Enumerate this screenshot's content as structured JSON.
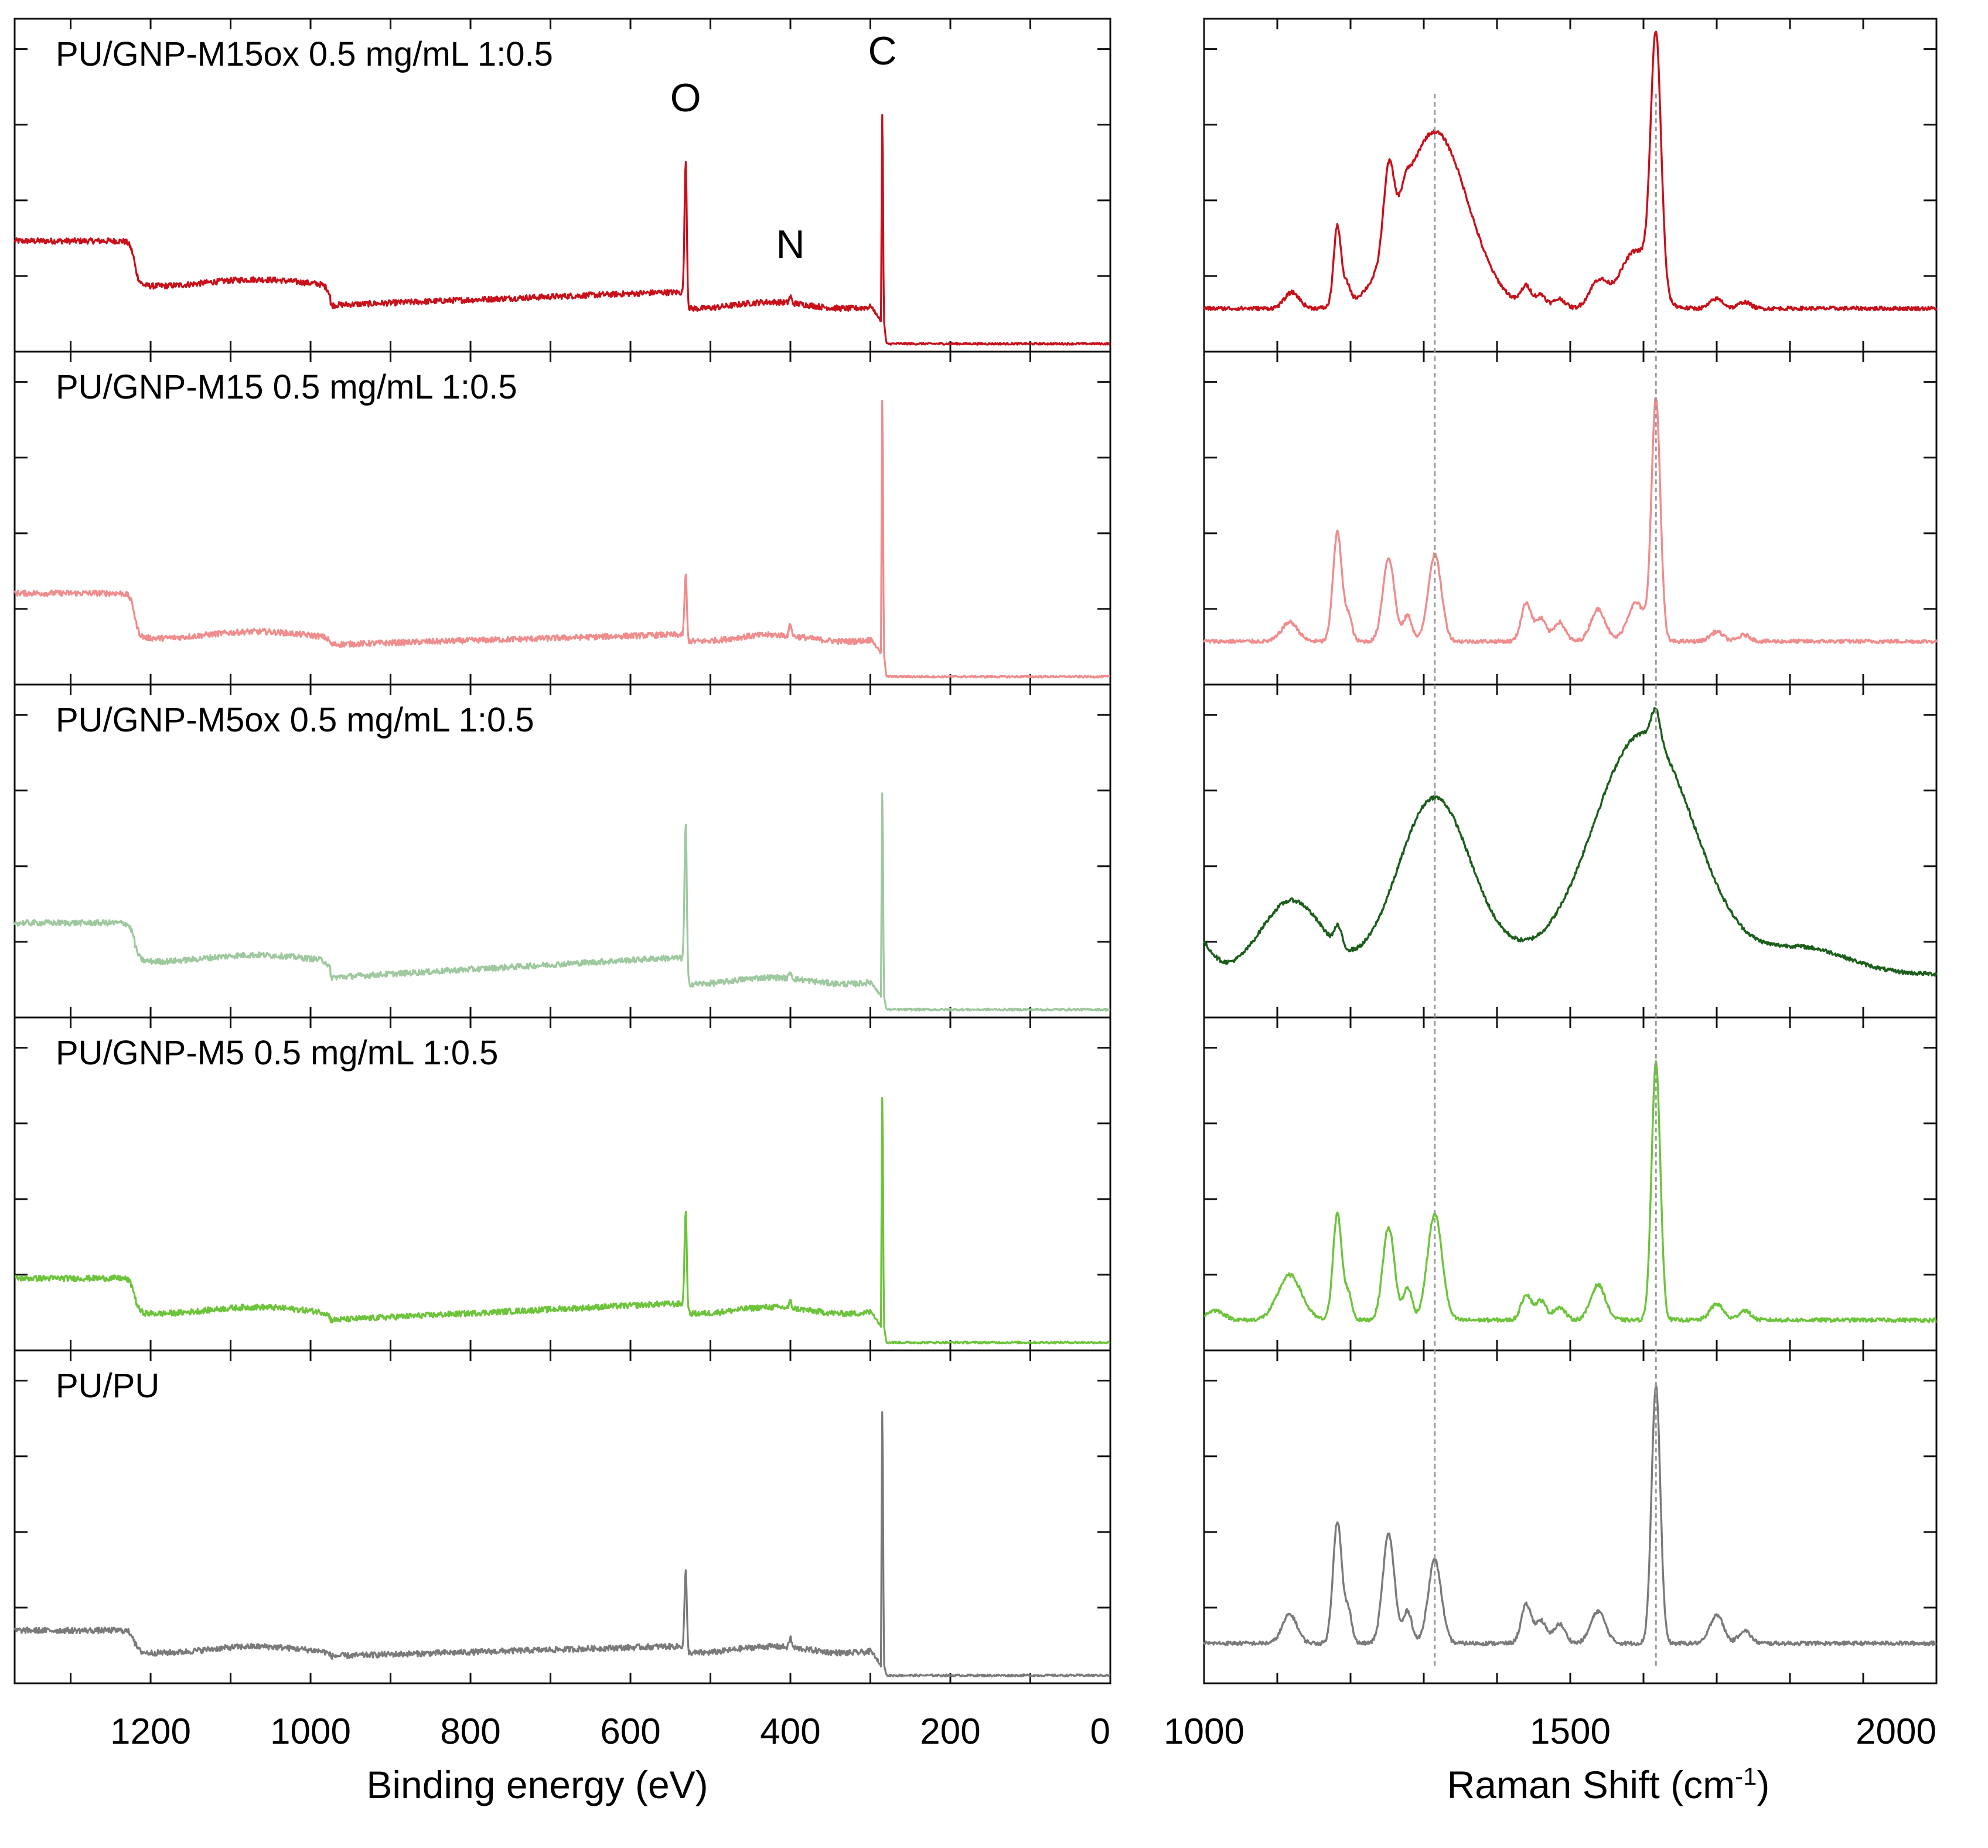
{
  "chart_data": [
    {
      "type": "line",
      "name": "XPS survey spectra",
      "xlabel": "Binding energy (eV)",
      "ylabel": "",
      "xlim": [
        1370,
        0
      ],
      "x_reversed": true,
      "xticks": [
        1200,
        1000,
        800,
        600,
        400,
        200,
        0
      ],
      "xtick_labels": [
        "1200",
        "1000",
        "800",
        "600",
        "400",
        "200",
        "0"
      ],
      "peak_labels": [
        {
          "text": "O",
          "x": 531
        },
        {
          "text": "N",
          "x": 400
        },
        {
          "text": "C",
          "x": 285
        }
      ],
      "series": [
        {
          "name": "PU/GNP-M15ox 0.5 mg/mL 1:0.5",
          "color": "#c8101a",
          "features": {
            "plateau_high_1370_1220": 0.33,
            "step_1220": 0.2,
            "plateau_mid_1220_975": 0.2,
            "step_975": 0.13,
            "baseline_975_560": 0.13,
            "rise_to_560": 0.17,
            "baseline_530_300": 0.13,
            "O_1s_peak_531": 0.58,
            "N_1s_peak_400": 0.15,
            "C_1s_peak_285": 0.73,
            "below_280": 0.01
          }
        },
        {
          "name": "PU/GNP-M15 0.5 mg/mL 1:0.5",
          "color": "#f08c8c",
          "features": {
            "plateau_high_1370_1220": 0.27,
            "step_1220": 0.15,
            "plateau_mid_1220_975": 0.14,
            "step_975": 0.1,
            "baseline_975_560": 0.11,
            "rise_to_560": 0.14,
            "baseline_530_300": 0.13,
            "O_1s_peak_531": 0.33,
            "N_1s_peak_400": 0.17,
            "C_1s_peak_285": 0.88,
            "below_280": 0.01
          }
        },
        {
          "name": "PU/GNP-M5ox 0.5 mg/mL 1:0.5",
          "color": "#9ec89e",
          "features": {
            "plateau_high_1370_1220": 0.28,
            "step_1220": 0.17,
            "plateau_mid_1220_975": 0.17,
            "step_975": 0.11,
            "baseline_975_560": 0.11,
            "rise_to_560": 0.17,
            "baseline_530_300": 0.1,
            "O_1s_peak_531": 0.59,
            "N_1s_peak_400": 0.12,
            "C_1s_peak_285": 0.69,
            "below_280": 0.01
          }
        },
        {
          "name": "PU/GNP-M5 0.5 mg/mL 1:0.5",
          "color": "#6cc43a",
          "features": {
            "plateau_high_1370_1220": 0.21,
            "step_1220": 0.12,
            "plateau_mid_1220_975": 0.11,
            "step_975": 0.08,
            "baseline_975_560": 0.08,
            "rise_to_560": 0.13,
            "baseline_530_300": 0.11,
            "O_1s_peak_531": 0.42,
            "N_1s_peak_400": 0.13,
            "C_1s_peak_285": 0.78,
            "below_280": 0.01
          }
        },
        {
          "name": "PU/PU",
          "color": "#7a7a7a",
          "features": {
            "plateau_high_1370_1220": 0.15,
            "step_1220": 0.09,
            "plateau_mid_1220_975": 0.09,
            "step_975": 0.07,
            "baseline_975_560": 0.07,
            "rise_to_560": 0.1,
            "baseline_530_300": 0.09,
            "O_1s_peak_531": 0.34,
            "N_1s_peak_400": 0.12,
            "C_1s_peak_285": 0.84,
            "below_280": 0.01
          }
        }
      ]
    },
    {
      "type": "line",
      "name": "Raman spectra",
      "xlabel": "Raman Shift (cm",
      "xlabel_sup": "-1",
      "xlabel_close": ")",
      "ylabel": "",
      "xlim": [
        1000,
        2000
      ],
      "xticks": [
        1000,
        1500,
        2000
      ],
      "xtick_labels": [
        "1000",
        "1500",
        "2000"
      ],
      "reference_lines": [
        1315,
        1617
      ],
      "series": [
        {
          "name": "PU/GNP-M15ox 0.5 mg/mL 1:0.5",
          "color": "#c8101a",
          "baseline": 0.12,
          "peaks": [
            {
              "x": 1120,
              "h": 0.05,
              "w": 10
            },
            {
              "x": 1182,
              "h": 0.25,
              "w": 5
            },
            {
              "x": 1195,
              "h": 0.06,
              "w": 5
            },
            {
              "x": 1252,
              "h": 0.25,
              "w": 7
            },
            {
              "x": 1275,
              "h": 0.05,
              "w": 6
            },
            {
              "x": 1315,
              "h": 0.55,
              "w": 45
            },
            {
              "x": 1440,
              "h": 0.06,
              "w": 7
            },
            {
              "x": 1460,
              "h": 0.04,
              "w": 7
            },
            {
              "x": 1485,
              "h": 0.03,
              "w": 8
            },
            {
              "x": 1538,
              "h": 0.08,
              "w": 12
            },
            {
              "x": 1590,
              "h": 0.18,
              "w": 22
            },
            {
              "x": 1617,
              "h": 0.78,
              "w": 7
            },
            {
              "x": 1700,
              "h": 0.03,
              "w": 9
            },
            {
              "x": 1738,
              "h": 0.02,
              "w": 8
            }
          ]
        },
        {
          "name": "PU/GNP-M15 0.5 mg/mL 1:0.5",
          "color": "#f08c8c",
          "baseline": 0.12,
          "peaks": [
            {
              "x": 1117,
              "h": 0.06,
              "w": 11
            },
            {
              "x": 1182,
              "h": 0.34,
              "w": 6
            },
            {
              "x": 1197,
              "h": 0.08,
              "w": 5
            },
            {
              "x": 1252,
              "h": 0.26,
              "w": 8
            },
            {
              "x": 1278,
              "h": 0.08,
              "w": 6
            },
            {
              "x": 1315,
              "h": 0.27,
              "w": 9
            },
            {
              "x": 1440,
              "h": 0.12,
              "w": 7
            },
            {
              "x": 1460,
              "h": 0.07,
              "w": 7
            },
            {
              "x": 1485,
              "h": 0.06,
              "w": 8
            },
            {
              "x": 1538,
              "h": 0.1,
              "w": 10
            },
            {
              "x": 1590,
              "h": 0.12,
              "w": 12
            },
            {
              "x": 1617,
              "h": 0.75,
              "w": 6
            },
            {
              "x": 1700,
              "h": 0.03,
              "w": 9
            },
            {
              "x": 1738,
              "h": 0.02,
              "w": 8
            }
          ]
        },
        {
          "name": "PU/GNP-M5ox 0.5 mg/mL 1:0.5",
          "color": "#1a5e1a",
          "baseline": 0.12,
          "peaks": [
            {
              "x": 985,
              "h": 0.12,
              "w": 22
            },
            {
              "x": 1120,
              "h": 0.23,
              "w": 42
            },
            {
              "x": 1183,
              "h": 0.06,
              "w": 5
            },
            {
              "x": 1315,
              "h": 0.55,
              "w": 50
            },
            {
              "x": 1425,
              "h": 0.03,
              "w": 40
            },
            {
              "x": 1600,
              "h": 0.75,
              "w": 70
            },
            {
              "x": 1617,
              "h": 0.1,
              "w": 6
            },
            {
              "x": 1820,
              "h": 0.08,
              "w": 60
            }
          ]
        },
        {
          "name": "PU/GNP-M5 0.5 mg/mL 1:0.5",
          "color": "#6cc43a",
          "baseline": 0.08,
          "peaks": [
            {
              "x": 1015,
              "h": 0.03,
              "w": 12
            },
            {
              "x": 1117,
              "h": 0.14,
              "w": 16
            },
            {
              "x": 1182,
              "h": 0.33,
              "w": 6
            },
            {
              "x": 1197,
              "h": 0.08,
              "w": 5
            },
            {
              "x": 1252,
              "h": 0.29,
              "w": 8
            },
            {
              "x": 1278,
              "h": 0.1,
              "w": 6
            },
            {
              "x": 1315,
              "h": 0.33,
              "w": 10
            },
            {
              "x": 1440,
              "h": 0.08,
              "w": 7
            },
            {
              "x": 1460,
              "h": 0.06,
              "w": 7
            },
            {
              "x": 1485,
              "h": 0.04,
              "w": 8
            },
            {
              "x": 1538,
              "h": 0.11,
              "w": 10
            },
            {
              "x": 1617,
              "h": 0.8,
              "w": 6
            },
            {
              "x": 1700,
              "h": 0.05,
              "w": 9
            },
            {
              "x": 1738,
              "h": 0.03,
              "w": 8
            }
          ]
        },
        {
          "name": "PU/PU",
          "color": "#7a7a7a",
          "baseline": 0.11,
          "peaks": [
            {
              "x": 1117,
              "h": 0.09,
              "w": 10
            },
            {
              "x": 1182,
              "h": 0.38,
              "w": 6
            },
            {
              "x": 1197,
              "h": 0.1,
              "w": 5
            },
            {
              "x": 1252,
              "h": 0.34,
              "w": 8
            },
            {
              "x": 1278,
              "h": 0.1,
              "w": 6
            },
            {
              "x": 1315,
              "h": 0.26,
              "w": 9
            },
            {
              "x": 1440,
              "h": 0.12,
              "w": 7
            },
            {
              "x": 1460,
              "h": 0.07,
              "w": 7
            },
            {
              "x": 1485,
              "h": 0.06,
              "w": 8
            },
            {
              "x": 1538,
              "h": 0.1,
              "w": 10
            },
            {
              "x": 1617,
              "h": 0.8,
              "w": 6
            },
            {
              "x": 1700,
              "h": 0.09,
              "w": 9
            },
            {
              "x": 1738,
              "h": 0.04,
              "w": 8
            }
          ]
        }
      ]
    }
  ]
}
